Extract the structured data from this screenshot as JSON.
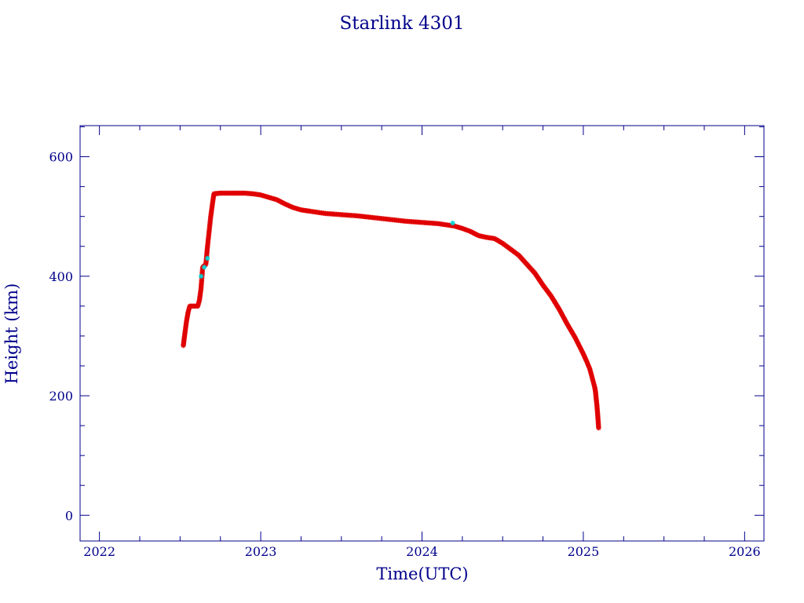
{
  "chart_data": {
    "type": "scatter",
    "title": "Starlink 4301",
    "xlabel": "Time(UTC)",
    "ylabel": "Height (km)",
    "xlim": [
      2021.88,
      2026.12
    ],
    "ylim": [
      -43,
      652
    ],
    "x_ticks": [
      2022,
      2023,
      2024,
      2025,
      2026
    ],
    "x_tick_labels": [
      "2022",
      "2023",
      "2024",
      "2025",
      "2026"
    ],
    "y_ticks": [
      0,
      200,
      400,
      600
    ],
    "y_tick_labels": [
      "0",
      "200",
      "400",
      "600"
    ],
    "grid": false,
    "legend": "none",
    "colors": {
      "frame": "#00008b",
      "primary": "#e00000",
      "secondary": "#00d8d8",
      "trace": "#000000"
    },
    "series": [
      {
        "marker": "asterisk",
        "color": "#e00000",
        "x": [
          2022.52,
          2022.53,
          2022.54,
          2022.55,
          2022.56,
          2022.58,
          2022.6,
          2022.61,
          2022.62,
          2022.63,
          2022.64,
          2022.66,
          2022.67,
          2022.68,
          2022.69,
          2022.7,
          2022.71,
          2022.75,
          2022.8,
          2022.85,
          2022.9,
          2022.95,
          2023.0,
          2023.05,
          2023.1,
          2023.15,
          2023.2,
          2023.25,
          2023.3,
          2023.4,
          2023.5,
          2023.6,
          2023.7,
          2023.8,
          2023.9,
          2024.0,
          2024.1,
          2024.2,
          2024.25,
          2024.3,
          2024.35,
          2024.4,
          2024.45,
          2024.5,
          2024.55,
          2024.6,
          2024.65,
          2024.7,
          2024.75,
          2024.8,
          2024.85,
          2024.9,
          2024.95,
          2025.0,
          2025.02,
          2025.04,
          2025.05,
          2025.06,
          2025.07,
          2025.075,
          2025.08,
          2025.085,
          2025.09,
          2025.095
        ],
        "y": [
          284,
          305,
          325,
          340,
          350,
          350,
          350,
          350,
          360,
          380,
          415,
          420,
          450,
          475,
          500,
          520,
          538,
          539,
          539,
          539,
          539,
          538,
          536,
          532,
          528,
          521,
          515,
          511,
          509,
          505,
          503,
          501,
          498,
          495,
          492,
          490,
          488,
          484,
          480,
          475,
          468,
          465,
          463,
          455,
          445,
          435,
          420,
          405,
          385,
          367,
          345,
          320,
          297,
          270,
          258,
          245,
          235,
          225,
          215,
          208,
          195,
          182,
          165,
          146
        ]
      },
      {
        "marker": "asterisk",
        "color": "#00d8d8",
        "x": [
          2022.63,
          2022.65,
          2022.67,
          2024.19
        ],
        "y": [
          400,
          415,
          430,
          489
        ]
      }
    ]
  }
}
